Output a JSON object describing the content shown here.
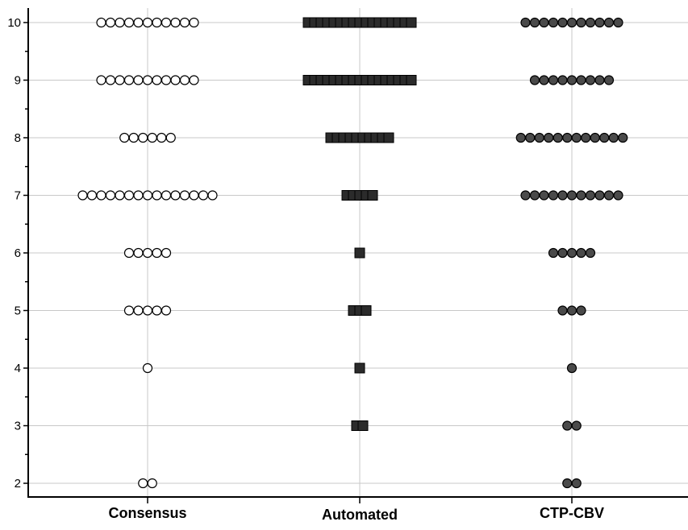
{
  "chart_data": {
    "type": "scatter",
    "subtype": "dot-plot",
    "title": "",
    "xlabel": "",
    "ylabel": "",
    "categories": [
      "Consensus",
      "Automated",
      "CTP-CBV"
    ],
    "ylim": [
      2,
      10
    ],
    "yticks": [
      2,
      3,
      4,
      5,
      6,
      7,
      8,
      9,
      10
    ],
    "grid": true,
    "series": [
      {
        "category": "Consensus",
        "marker": "open-circle",
        "fill": "#ffffff",
        "stroke": "#000000",
        "counts": [
          {
            "y": 10,
            "n": 11
          },
          {
            "y": 9,
            "n": 11
          },
          {
            "y": 8,
            "n": 6
          },
          {
            "y": 7,
            "n": 15
          },
          {
            "y": 6,
            "n": 5
          },
          {
            "y": 5,
            "n": 5
          },
          {
            "y": 4,
            "n": 1
          },
          {
            "y": 2,
            "n": 2
          }
        ]
      },
      {
        "category": "Automated",
        "marker": "filled-square",
        "fill": "#2b2b2b",
        "stroke": "#000000",
        "counts": [
          {
            "y": 10,
            "n": 17
          },
          {
            "y": 9,
            "n": 17
          },
          {
            "y": 8,
            "n": 10
          },
          {
            "y": 7,
            "n": 5
          },
          {
            "y": 6,
            "n": 1
          },
          {
            "y": 5,
            "n": 3
          },
          {
            "y": 4,
            "n": 1
          },
          {
            "y": 3,
            "n": 2
          }
        ]
      },
      {
        "category": "CTP-CBV",
        "marker": "filled-circle",
        "fill": "#4a4a4a",
        "stroke": "#000000",
        "counts": [
          {
            "y": 10,
            "n": 11
          },
          {
            "y": 9,
            "n": 9
          },
          {
            "y": 8,
            "n": 12
          },
          {
            "y": 7,
            "n": 11
          },
          {
            "y": 6,
            "n": 5
          },
          {
            "y": 5,
            "n": 3
          },
          {
            "y": 4,
            "n": 1
          },
          {
            "y": 3,
            "n": 2
          },
          {
            "y": 2,
            "n": 2
          }
        ]
      }
    ]
  }
}
